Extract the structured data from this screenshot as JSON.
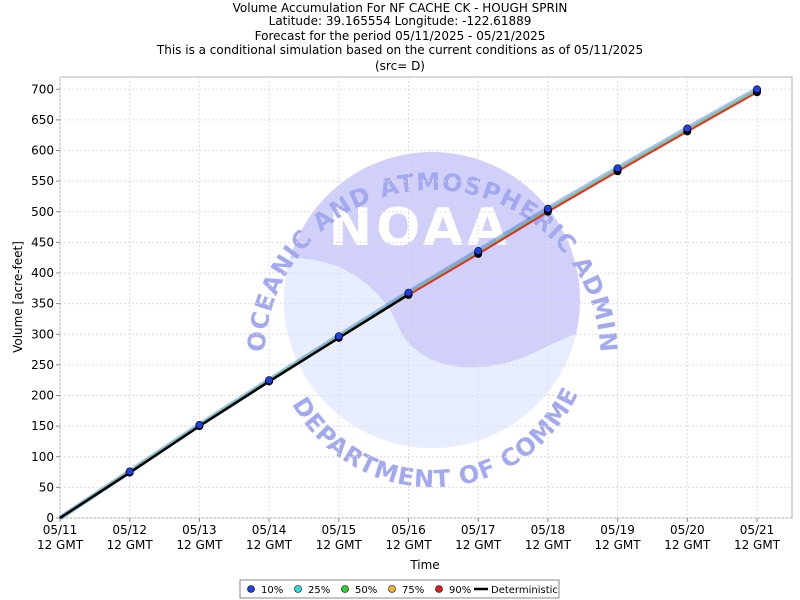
{
  "chart_data": {
    "type": "line",
    "title_lines": [
      "Volume Accumulation For NF CACHE CK - HOUGH SPRIN",
      "Latitude: 39.165554 Longitude: -122.61889",
      "Forecast for the period 05/11/2025 - 05/21/2025",
      "This is a conditional simulation based on the current conditions as of 05/11/2025",
      "(src= D)"
    ],
    "xlabel": "Time",
    "ylabel": "Volume [acre-feet]",
    "ylim": [
      0,
      720
    ],
    "yticks": [
      0,
      50,
      100,
      150,
      200,
      250,
      300,
      350,
      400,
      450,
      500,
      550,
      600,
      650,
      700
    ],
    "x": [
      "05/11 12 GMT",
      "05/12 12 GMT",
      "05/13 12 GMT",
      "05/14 12 GMT",
      "05/15 12 GMT",
      "05/16 12 GMT",
      "05/17 12 GMT",
      "05/18 12 GMT",
      "05/19 12 GMT",
      "05/20 12 GMT",
      "05/21 12 GMT"
    ],
    "xtick_labels": [
      [
        "05/11",
        "12 GMT"
      ],
      [
        "05/12",
        "12 GMT"
      ],
      [
        "05/13",
        "12 GMT"
      ],
      [
        "05/14",
        "12 GMT"
      ],
      [
        "05/15",
        "12 GMT"
      ],
      [
        "05/16",
        "12 GMT"
      ],
      [
        "05/17",
        "12 GMT"
      ],
      [
        "05/18",
        "12 GMT"
      ],
      [
        "05/19",
        "12 GMT"
      ],
      [
        "05/20",
        "12 GMT"
      ],
      [
        "05/21",
        "12 GMT"
      ]
    ],
    "grid": true,
    "legend_position": "bottom-center",
    "series": [
      {
        "name": "10%",
        "color": "#1f3fe0",
        "values": [
          0,
          76,
          152,
          225,
          297,
          368,
          436,
          505,
          571,
          636,
          700
        ]
      },
      {
        "name": "25%",
        "color": "#33dddd",
        "values": [
          0,
          75,
          151,
          224,
          296,
          366,
          434,
          503,
          569,
          634,
          698
        ]
      },
      {
        "name": "50%",
        "color": "#33cc33",
        "values": [
          0,
          75,
          151,
          224,
          295,
          366,
          433,
          502,
          568,
          633,
          697
        ]
      },
      {
        "name": "75%",
        "color": "#f0b030",
        "values": [
          0,
          75,
          150,
          223,
          295,
          365,
          432,
          501,
          567,
          632,
          696
        ]
      },
      {
        "name": "90%",
        "color": "#e02020",
        "values": [
          0,
          74,
          150,
          223,
          294,
          364,
          431,
          500,
          566,
          631,
          695
        ]
      },
      {
        "name": "Deterministic",
        "color": "#000000",
        "values": [
          0,
          74,
          150,
          223,
          294,
          365,
          null,
          null,
          null,
          null,
          null
        ]
      }
    ],
    "watermark": {
      "text_top": "NATIONAL OCEANIC AND ATMOSPHERIC ADMINISTRATION",
      "text_bottom": "U.S. DEPARTMENT OF COMMERCE",
      "center": "NOAA"
    }
  }
}
